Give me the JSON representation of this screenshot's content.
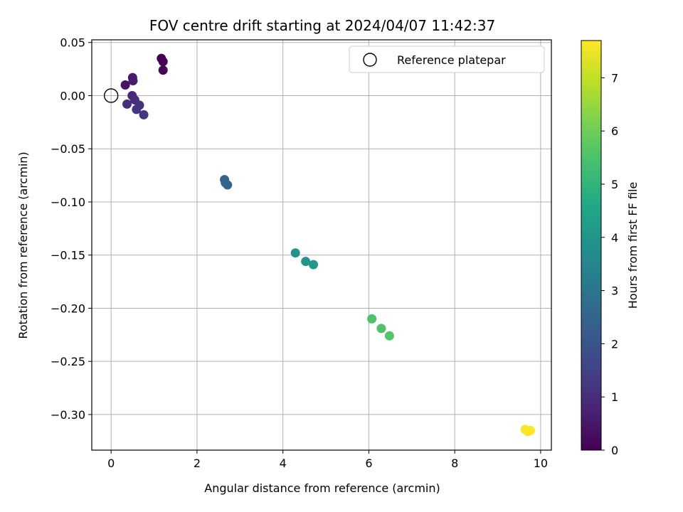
{
  "chart_data": {
    "type": "scatter",
    "title": "FOV centre drift starting at 2024/04/07 11:42:37",
    "xlabel": "Angular distance from reference (arcmin)",
    "ylabel": "Rotation from reference (arcmin)",
    "xlim": [
      -0.45,
      10.25
    ],
    "ylim": [
      -0.3335,
      0.0525
    ],
    "xticks": [
      0,
      2,
      4,
      6,
      8,
      10
    ],
    "xtick_labels": [
      "0",
      "2",
      "4",
      "6",
      "8",
      "10"
    ],
    "yticks": [
      0.05,
      0.0,
      -0.05,
      -0.1,
      -0.15,
      -0.2,
      -0.25,
      -0.3
    ],
    "ytick_labels": [
      "0.05",
      "0.00",
      "−0.05",
      "−0.10",
      "−0.15",
      "−0.20",
      "−0.25",
      "−0.30"
    ],
    "grid": true,
    "legend": {
      "position": "top-right",
      "entries": [
        "Reference platepar"
      ]
    },
    "reference_point": {
      "x": 0.0,
      "y": 0.0,
      "label": "Reference platepar"
    },
    "colorbar": {
      "label": "Hours from first FF file",
      "range": [
        0,
        7.7
      ],
      "ticks": [
        0,
        1,
        2,
        3,
        4,
        5,
        6,
        7
      ],
      "colormap": "viridis"
    },
    "points": [
      {
        "x": 1.17,
        "y": 0.035,
        "hours": 0.0
      },
      {
        "x": 1.21,
        "y": 0.032,
        "hours": 0.05
      },
      {
        "x": 1.21,
        "y": 0.024,
        "hours": 0.1
      },
      {
        "x": 0.33,
        "y": 0.01,
        "hours": 0.4
      },
      {
        "x": 0.5,
        "y": 0.017,
        "hours": 0.55
      },
      {
        "x": 0.51,
        "y": 0.014,
        "hours": 0.6
      },
      {
        "x": 0.49,
        "y": 0.0,
        "hours": 0.9
      },
      {
        "x": 0.55,
        "y": -0.004,
        "hours": 1.0
      },
      {
        "x": 0.37,
        "y": -0.008,
        "hours": 1.05
      },
      {
        "x": 0.66,
        "y": -0.009,
        "hours": 1.1
      },
      {
        "x": 0.59,
        "y": -0.013,
        "hours": 1.15
      },
      {
        "x": 0.76,
        "y": -0.018,
        "hours": 1.2
      },
      {
        "x": 2.64,
        "y": -0.079,
        "hours": 2.4
      },
      {
        "x": 2.66,
        "y": -0.082,
        "hours": 2.45
      },
      {
        "x": 2.71,
        "y": -0.084,
        "hours": 2.5
      },
      {
        "x": 4.29,
        "y": -0.148,
        "hours": 4.0
      },
      {
        "x": 4.53,
        "y": -0.156,
        "hours": 4.05
      },
      {
        "x": 4.71,
        "y": -0.159,
        "hours": 4.1
      },
      {
        "x": 6.07,
        "y": -0.21,
        "hours": 5.5
      },
      {
        "x": 6.29,
        "y": -0.219,
        "hours": 5.55
      },
      {
        "x": 6.48,
        "y": -0.226,
        "hours": 5.6
      },
      {
        "x": 9.64,
        "y": -0.314,
        "hours": 7.6
      },
      {
        "x": 9.7,
        "y": -0.316,
        "hours": 7.65
      },
      {
        "x": 9.76,
        "y": -0.315,
        "hours": 7.7
      }
    ]
  }
}
